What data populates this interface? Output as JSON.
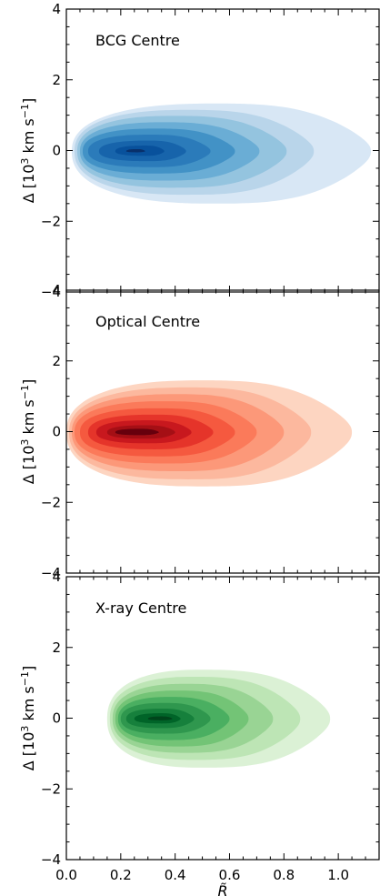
{
  "chart_data": {
    "type": "contour",
    "layout": "3 stacked panels, shared x axis",
    "xlabel": "R̃",
    "ylabel_main": "Δ [10",
    "ylabel_exp1": "3",
    "ylabel_mid": " km s",
    "ylabel_exp2": "−1",
    "ylabel_end": "]",
    "xlim": [
      0.0,
      1.15
    ],
    "ylim": [
      -4,
      4
    ],
    "xticks": [
      0.0,
      0.2,
      0.4,
      0.6,
      0.8,
      1.0
    ],
    "xtick_labels": [
      "0.0",
      "0.2",
      "0.4",
      "0.6",
      "0.8",
      "1.0"
    ],
    "yticks": [
      -4,
      -2,
      0,
      2,
      4
    ],
    "ytick_labels": [
      "−4",
      "−2",
      "0",
      "2",
      "4"
    ],
    "grid": false,
    "panels": [
      {
        "title": "BCG Centre",
        "colormap": "Blues",
        "colors": [
          "#d8e7f5",
          "#b9d5ea",
          "#94c4df",
          "#6aadd5",
          "#4292c6",
          "#2b7bba",
          "#1764ab",
          "#08519c",
          "#08306b"
        ],
        "contours": [
          {
            "cx": 0.55,
            "cy": -0.02,
            "x_min": 0.02,
            "x_max": 1.12,
            "y_top": 1.33,
            "y_bottom": -1.5
          },
          {
            "cx": 0.45,
            "cy": -0.02,
            "x_min": 0.03,
            "x_max": 0.91,
            "y_top": 1.15,
            "y_bottom": -1.25
          },
          {
            "cx": 0.4,
            "cy": -0.02,
            "x_min": 0.04,
            "x_max": 0.81,
            "y_top": 0.98,
            "y_bottom": -1.05
          },
          {
            "cx": 0.36,
            "cy": -0.02,
            "x_min": 0.05,
            "x_max": 0.71,
            "y_top": 0.8,
            "y_bottom": -0.85
          },
          {
            "cx": 0.33,
            "cy": -0.02,
            "x_min": 0.06,
            "x_max": 0.62,
            "y_top": 0.62,
            "y_bottom": -0.65
          },
          {
            "cx": 0.31,
            "cy": -0.02,
            "x_min": 0.08,
            "x_max": 0.53,
            "y_top": 0.45,
            "y_bottom": -0.47
          },
          {
            "cx": 0.3,
            "cy": -0.02,
            "x_min": 0.12,
            "x_max": 0.44,
            "y_top": 0.28,
            "y_bottom": -0.3
          },
          {
            "cx": 0.29,
            "cy": -0.02,
            "x_min": 0.18,
            "x_max": 0.36,
            "y_top": 0.14,
            "y_bottom": -0.15
          },
          {
            "cx": 0.26,
            "cy": -0.02,
            "x_min": 0.22,
            "x_max": 0.29,
            "y_top": 0.04,
            "y_bottom": -0.05
          }
        ]
      },
      {
        "title": "Optical Centre",
        "colormap": "Reds",
        "colors": [
          "#fdd5c1",
          "#fcb89e",
          "#fc9879",
          "#fb7a5a",
          "#f5593f",
          "#e5342a",
          "#c8181e",
          "#a50f15",
          "#67000d"
        ],
        "contours": [
          {
            "cx": 0.5,
            "cy": -0.02,
            "x_min": 0.0,
            "x_max": 1.05,
            "y_top": 1.45,
            "y_bottom": -1.55
          },
          {
            "cx": 0.45,
            "cy": -0.02,
            "x_min": 0.01,
            "x_max": 0.9,
            "y_top": 1.25,
            "y_bottom": -1.35
          },
          {
            "cx": 0.41,
            "cy": -0.02,
            "x_min": 0.02,
            "x_max": 0.8,
            "y_top": 1.06,
            "y_bottom": -1.12
          },
          {
            "cx": 0.37,
            "cy": -0.02,
            "x_min": 0.03,
            "x_max": 0.7,
            "y_top": 0.86,
            "y_bottom": -0.9
          },
          {
            "cx": 0.34,
            "cy": -0.02,
            "x_min": 0.05,
            "x_max": 0.62,
            "y_top": 0.66,
            "y_bottom": -0.7
          },
          {
            "cx": 0.32,
            "cy": -0.02,
            "x_min": 0.08,
            "x_max": 0.54,
            "y_top": 0.48,
            "y_bottom": -0.5
          },
          {
            "cx": 0.3,
            "cy": -0.02,
            "x_min": 0.11,
            "x_max": 0.46,
            "y_top": 0.32,
            "y_bottom": -0.33
          },
          {
            "cx": 0.29,
            "cy": -0.02,
            "x_min": 0.15,
            "x_max": 0.4,
            "y_top": 0.18,
            "y_bottom": -0.2
          },
          {
            "cx": 0.27,
            "cy": -0.02,
            "x_min": 0.18,
            "x_max": 0.34,
            "y_top": 0.08,
            "y_bottom": -0.1
          }
        ]
      },
      {
        "title": "X-ray Centre",
        "colormap": "Greens",
        "colors": [
          "#dbf1d5",
          "#bde5b5",
          "#99d494",
          "#73c476",
          "#4aaf61",
          "#2f974e",
          "#16803c",
          "#006428",
          "#00441b"
        ],
        "contours": [
          {
            "cx": 0.5,
            "cy": -0.02,
            "x_min": 0.15,
            "x_max": 0.97,
            "y_top": 1.37,
            "y_bottom": -1.4
          },
          {
            "cx": 0.47,
            "cy": -0.02,
            "x_min": 0.16,
            "x_max": 0.86,
            "y_top": 1.17,
            "y_bottom": -1.18
          },
          {
            "cx": 0.44,
            "cy": -0.02,
            "x_min": 0.17,
            "x_max": 0.76,
            "y_top": 0.97,
            "y_bottom": -0.98
          },
          {
            "cx": 0.41,
            "cy": -0.02,
            "x_min": 0.18,
            "x_max": 0.67,
            "y_top": 0.78,
            "y_bottom": -0.8
          },
          {
            "cx": 0.38,
            "cy": -0.02,
            "x_min": 0.19,
            "x_max": 0.6,
            "y_top": 0.6,
            "y_bottom": -0.62
          },
          {
            "cx": 0.36,
            "cy": -0.02,
            "x_min": 0.2,
            "x_max": 0.53,
            "y_top": 0.43,
            "y_bottom": -0.44
          },
          {
            "cx": 0.35,
            "cy": -0.02,
            "x_min": 0.22,
            "x_max": 0.47,
            "y_top": 0.27,
            "y_bottom": -0.28
          },
          {
            "cx": 0.35,
            "cy": -0.02,
            "x_min": 0.25,
            "x_max": 0.42,
            "y_top": 0.14,
            "y_bottom": -0.15
          },
          {
            "cx": 0.35,
            "cy": -0.02,
            "x_min": 0.3,
            "x_max": 0.39,
            "y_top": 0.05,
            "y_bottom": -0.06
          }
        ]
      }
    ]
  }
}
